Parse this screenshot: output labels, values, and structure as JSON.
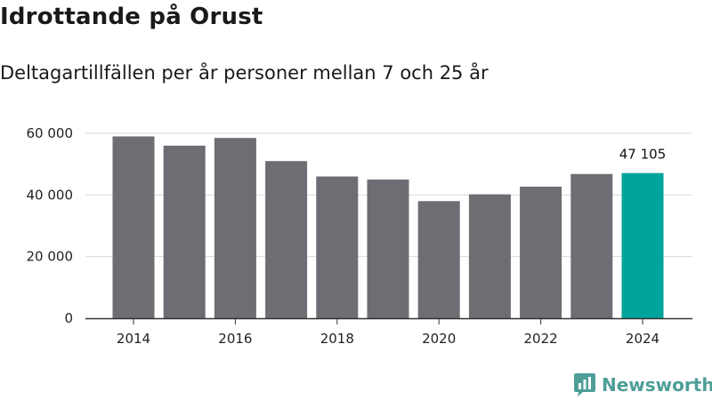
{
  "header": {
    "title": "Idrottande på Orust",
    "subtitle": "Deltagartillfällen per år personer mellan 7 och 25 år"
  },
  "brand": {
    "name": "Newsworthy",
    "icon": "newsworthy-logo-icon",
    "color": "#4e9e98"
  },
  "chart_data": {
    "type": "bar",
    "title": "Idrottande på Orust",
    "subtitle": "Deltagartillfällen per år personer mellan 7 och 25 år",
    "xlabel": "",
    "ylabel": "",
    "categories": [
      "2014",
      "2015",
      "2016",
      "2017",
      "2018",
      "2019",
      "2020",
      "2021",
      "2022",
      "2023",
      "2024"
    ],
    "values": [
      59000,
      56000,
      58500,
      51000,
      46000,
      45000,
      38000,
      40200,
      42700,
      46800,
      47105
    ],
    "x_tick_labels": [
      "2014",
      "2016",
      "2018",
      "2020",
      "2022",
      "2024"
    ],
    "y_ticks": [
      0,
      20000,
      40000,
      60000
    ],
    "y_tick_labels": [
      "0",
      "20 000",
      "40 000",
      "60 000"
    ],
    "ylim": [
      0,
      60000
    ],
    "grid": true,
    "legend": "none",
    "highlight_index": 10,
    "data_labels": [
      {
        "index": 10,
        "text": "47 105"
      }
    ],
    "colors": {
      "bar": "#6e6d73",
      "highlight": "#00a49a",
      "grid": "#d8d8d8",
      "axis": "#333333"
    }
  }
}
